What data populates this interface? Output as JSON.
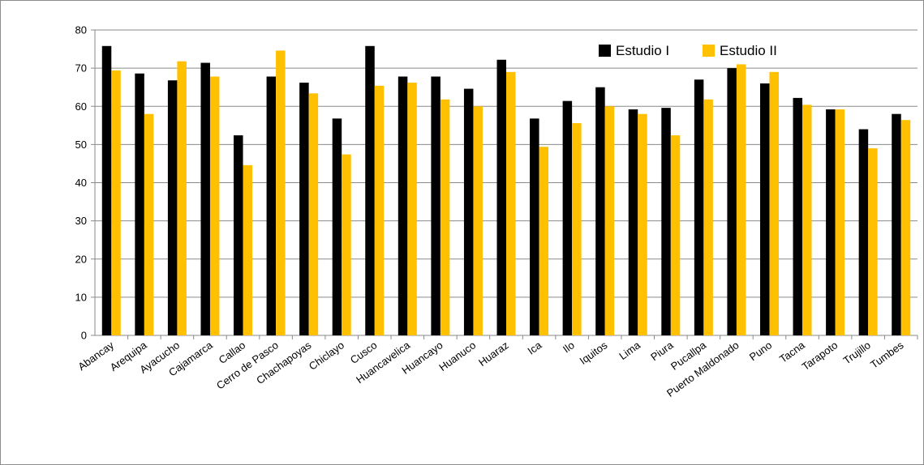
{
  "chart_data": {
    "type": "bar",
    "categories": [
      "Abancay",
      "Arequipa",
      "Ayacucho",
      "Cajamarca",
      "Callao",
      "Cerro de Pasco",
      "Chachapoyas",
      "Chiclayo",
      "Cusco",
      "Huancavelica",
      "Huancayo",
      "Huanuco",
      "Huaraz",
      "Ica",
      "Ilo",
      "Iquitos",
      "Lima",
      "Piura",
      "Pucallpa",
      "Puerto Maldonado",
      "Puno",
      "Tacna",
      "Tarapoto",
      "Trujillo",
      "Tumbes"
    ],
    "series": [
      {
        "name": "Estudio I",
        "color": "#000000",
        "values": [
          75.8,
          68.6,
          66.8,
          71.4,
          52.4,
          67.8,
          66.2,
          56.8,
          75.8,
          67.8,
          67.8,
          64.6,
          72.2,
          56.8,
          61.4,
          65.0,
          59.2,
          59.6,
          67.0,
          70.0,
          66.0,
          62.2,
          59.2,
          54.0,
          58.0
        ]
      },
      {
        "name": "Estudio II",
        "color": "#ffc000",
        "values": [
          69.4,
          58.0,
          71.8,
          67.8,
          44.6,
          74.6,
          63.4,
          47.4,
          65.4,
          66.2,
          61.8,
          60.0,
          69.0,
          49.4,
          55.6,
          60.0,
          58.0,
          52.4,
          61.8,
          71.0,
          69.0,
          60.4,
          59.2,
          49.0,
          56.4
        ]
      }
    ],
    "yticks": [
      "0",
      "10",
      "20",
      "30",
      "40",
      "50",
      "60",
      "70",
      "80"
    ],
    "ylim": [
      0,
      80
    ],
    "grid": true,
    "legend_position": "top-right",
    "title": "",
    "xlabel": "",
    "ylabel": ""
  }
}
